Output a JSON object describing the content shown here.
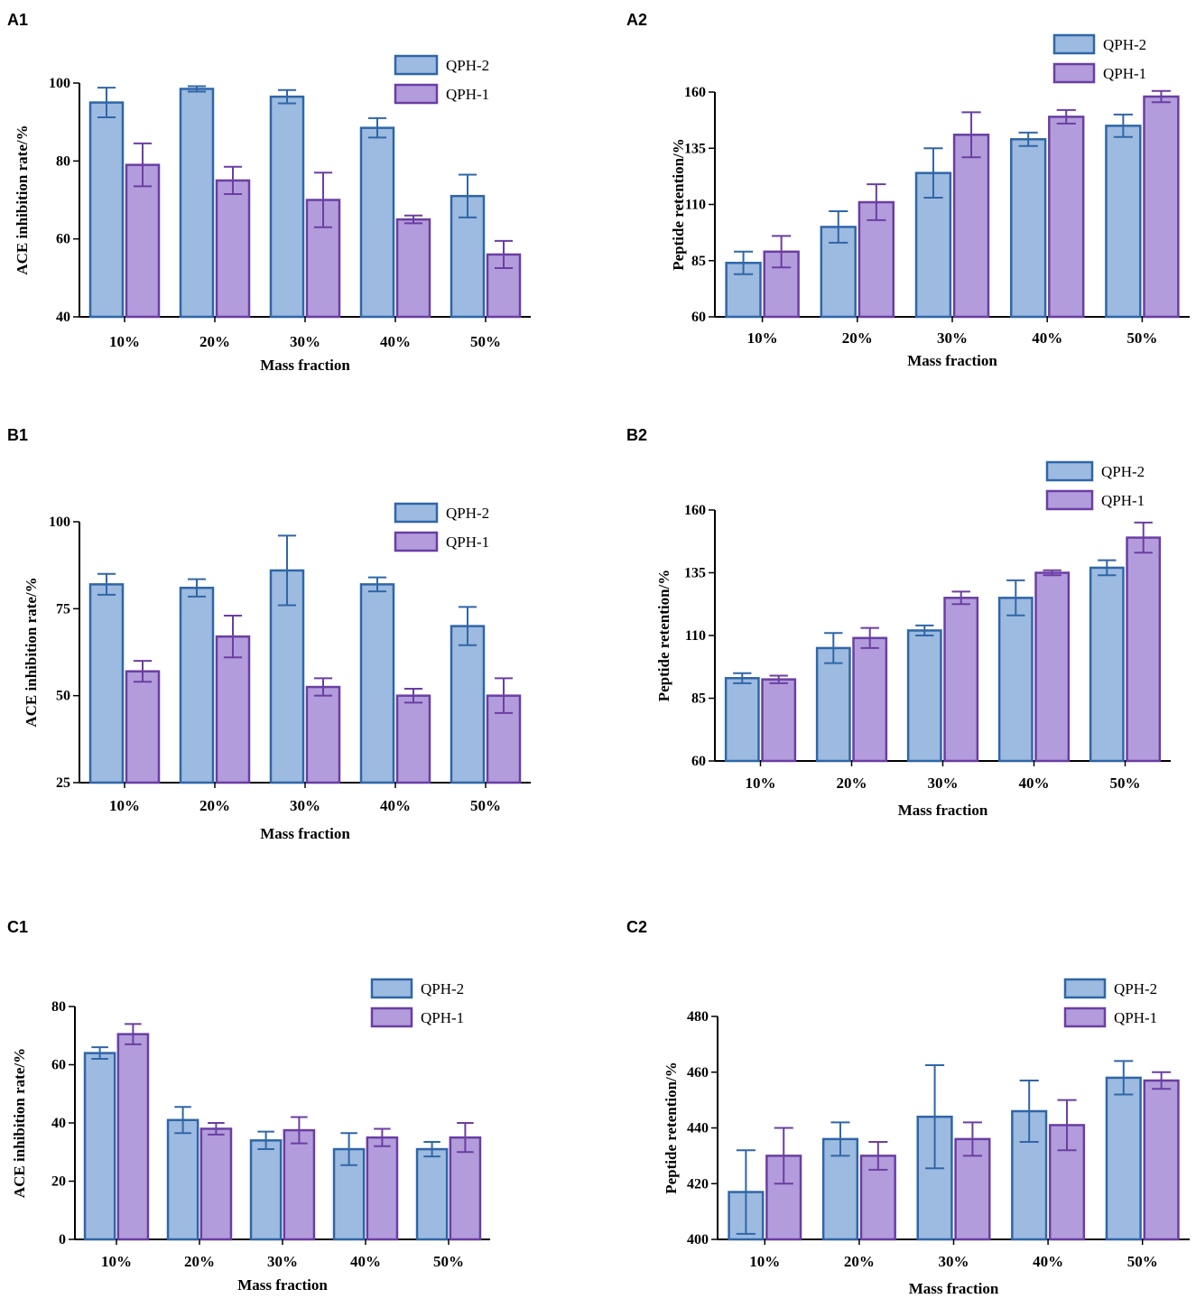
{
  "chart_data": [
    {
      "panel": "A1",
      "type": "bar",
      "title": "",
      "xlabel": "Mass fraction",
      "ylabel": "ACE inhibition rate/%",
      "ylim": [
        40,
        100
      ],
      "yticks": [
        40,
        60,
        80,
        100
      ],
      "categories": [
        "10%",
        "20%",
        "30%",
        "40%",
        "50%"
      ],
      "legend_location": "top-right",
      "series": [
        {
          "name": "QPH-2",
          "values": [
            95,
            98.5,
            96.5,
            88.5,
            71
          ],
          "errors": [
            3.8,
            0.7,
            1.7,
            2.5,
            5.5
          ]
        },
        {
          "name": "QPH-1",
          "values": [
            79,
            75,
            70,
            65,
            56
          ],
          "errors": [
            5.5,
            3.5,
            7,
            1,
            3.5
          ]
        }
      ]
    },
    {
      "panel": "A2",
      "type": "bar",
      "title": "",
      "xlabel": "Mass fraction",
      "ylabel": "Peptide retention/%",
      "ylim": [
        60,
        160
      ],
      "yticks": [
        60,
        85,
        110,
        135,
        160
      ],
      "categories": [
        "10%",
        "20%",
        "30%",
        "40%",
        "50%"
      ],
      "legend_location": "top-right",
      "series": [
        {
          "name": "QPH-2",
          "values": [
            84,
            100,
            124,
            139,
            145
          ],
          "errors": [
            5,
            7,
            11,
            3,
            5
          ]
        },
        {
          "name": "QPH-1",
          "values": [
            89,
            111,
            141,
            149,
            158
          ],
          "errors": [
            7,
            8,
            10,
            3,
            2.5
          ]
        }
      ]
    },
    {
      "panel": "B1",
      "type": "bar",
      "title": "",
      "xlabel": "Mass fraction",
      "ylabel": "ACE inhibition rate/%",
      "ylim": [
        25,
        100
      ],
      "yticks": [
        25,
        50,
        75,
        100
      ],
      "categories": [
        "10%",
        "20%",
        "30%",
        "40%",
        "50%"
      ],
      "legend_location": "top-right",
      "series": [
        {
          "name": "QPH-2",
          "values": [
            82,
            81,
            86,
            82,
            70
          ],
          "errors": [
            3,
            2.5,
            10,
            2,
            5.5
          ]
        },
        {
          "name": "QPH-1",
          "values": [
            57,
            67,
            52.5,
            50,
            50
          ],
          "errors": [
            3,
            6,
            2.5,
            2,
            5
          ]
        }
      ]
    },
    {
      "panel": "B2",
      "type": "bar",
      "title": "",
      "xlabel": "Mass fraction",
      "ylabel": "Peptide retention/%",
      "ylim": [
        60,
        160
      ],
      "yticks": [
        60,
        85,
        110,
        135,
        160
      ],
      "categories": [
        "10%",
        "20%",
        "30%",
        "40%",
        "50%"
      ],
      "legend_location": "top-right",
      "series": [
        {
          "name": "QPH-2",
          "values": [
            93,
            105,
            112,
            125,
            137
          ],
          "errors": [
            2,
            6,
            2,
            7,
            3
          ]
        },
        {
          "name": "QPH-1",
          "values": [
            92.5,
            109,
            125,
            135,
            149
          ],
          "errors": [
            1.5,
            4,
            2.5,
            1,
            6
          ]
        }
      ]
    },
    {
      "panel": "C1",
      "type": "bar",
      "title": "",
      "xlabel": "Mass fraction",
      "ylabel": "ACE inhibition rate/%",
      "ylim": [
        0,
        80
      ],
      "yticks": [
        0,
        20,
        40,
        60,
        80
      ],
      "categories": [
        "10%",
        "20%",
        "30%",
        "40%",
        "50%"
      ],
      "legend_location": "top-right",
      "series": [
        {
          "name": "QPH-2",
          "values": [
            64,
            41,
            34,
            31,
            31
          ],
          "errors": [
            2,
            4.5,
            3,
            5.5,
            2.5
          ]
        },
        {
          "name": "QPH-1",
          "values": [
            70.5,
            38,
            37.5,
            35,
            35
          ],
          "errors": [
            3.5,
            2,
            4.5,
            3,
            5
          ]
        }
      ]
    },
    {
      "panel": "C2",
      "type": "bar",
      "title": "",
      "xlabel": "Mass fraction",
      "ylabel": "Peptide retention/%",
      "ylim": [
        400,
        480
      ],
      "yticks": [
        400,
        420,
        440,
        460,
        480
      ],
      "categories": [
        "10%",
        "20%",
        "30%",
        "40%",
        "50%"
      ],
      "legend_location": "top-right",
      "series": [
        {
          "name": "QPH-2",
          "values": [
            417,
            436,
            444,
            446,
            458
          ],
          "errors": [
            15,
            6,
            18.5,
            11,
            6
          ]
        },
        {
          "name": "QPH-1",
          "values": [
            430,
            430,
            436,
            441,
            457
          ],
          "errors": [
            10,
            5,
            6,
            9,
            3
          ]
        }
      ]
    }
  ],
  "colors": {
    "QPH-2": {
      "fill": "#9dbbe0",
      "stroke": "#2f66a8"
    },
    "QPH-1": {
      "fill": "#b39cdb",
      "stroke": "#6a3ea3"
    }
  }
}
